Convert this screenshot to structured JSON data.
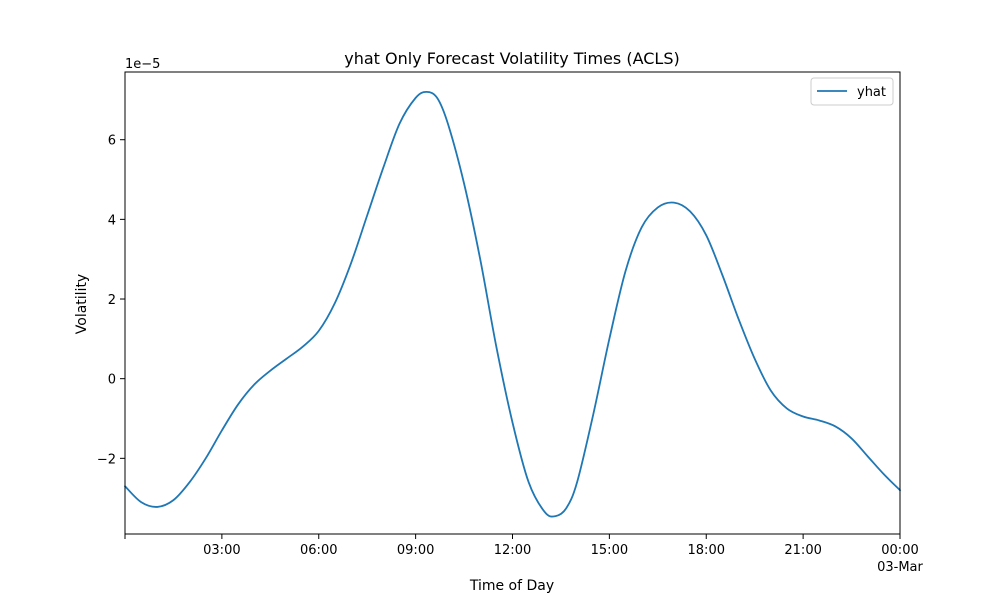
{
  "chart_data": {
    "type": "line",
    "title": "yhat Only Forecast Volatility Times (ACLS)",
    "xlabel": "Time of Day",
    "ylabel": "Volatility",
    "y_offset_label": "1e−5",
    "y_scale_factor": 1e-05,
    "xlim": [
      "00:00",
      "24:00"
    ],
    "ylim": [
      -3.9,
      7.7
    ],
    "x_ticks": [
      {
        "value": 0,
        "label": ""
      },
      {
        "value": 3,
        "label": "03:00"
      },
      {
        "value": 6,
        "label": "06:00"
      },
      {
        "value": 9,
        "label": "09:00"
      },
      {
        "value": 12,
        "label": "12:00"
      },
      {
        "value": 15,
        "label": "15:00"
      },
      {
        "value": 18,
        "label": "18:00"
      },
      {
        "value": 21,
        "label": "21:00"
      },
      {
        "value": 24,
        "label": "00:00",
        "sublabel": "03-Mar"
      }
    ],
    "y_ticks": [
      {
        "value": -2,
        "label": "−2"
      },
      {
        "value": 0,
        "label": "0"
      },
      {
        "value": 2,
        "label": "2"
      },
      {
        "value": 4,
        "label": "4"
      },
      {
        "value": 6,
        "label": "6"
      }
    ],
    "grid": false,
    "legend": {
      "position": "top-right",
      "entries": [
        "yhat"
      ]
    },
    "series": [
      {
        "name": "yhat",
        "color": "#1f77b4",
        "x": [
          "00:00",
          "00:30",
          "01:00",
          "01:30",
          "02:00",
          "02:30",
          "03:00",
          "03:30",
          "04:00",
          "04:30",
          "05:00",
          "05:30",
          "06:00",
          "06:30",
          "07:00",
          "07:30",
          "08:00",
          "08:30",
          "09:00",
          "09:20",
          "09:40",
          "10:00",
          "10:30",
          "11:00",
          "11:30",
          "12:00",
          "12:30",
          "13:00",
          "13:20",
          "13:40",
          "14:00",
          "14:30",
          "15:00",
          "15:30",
          "16:00",
          "16:30",
          "17:00",
          "17:30",
          "18:00",
          "18:30",
          "19:00",
          "19:30",
          "20:00",
          "20:30",
          "21:00",
          "21:30",
          "22:00",
          "22:30",
          "23:00",
          "23:30",
          "24:00"
        ],
        "values": [
          -2.7,
          -3.1,
          -3.22,
          -3.05,
          -2.6,
          -2.0,
          -1.3,
          -0.65,
          -0.15,
          0.2,
          0.5,
          0.8,
          1.2,
          1.9,
          2.9,
          4.1,
          5.3,
          6.4,
          7.05,
          7.2,
          7.05,
          6.4,
          4.9,
          3.0,
          0.8,
          -1.1,
          -2.6,
          -3.35,
          -3.45,
          -3.25,
          -2.6,
          -0.9,
          1.0,
          2.7,
          3.8,
          4.3,
          4.42,
          4.2,
          3.6,
          2.6,
          1.5,
          0.5,
          -0.3,
          -0.75,
          -0.95,
          -1.05,
          -1.2,
          -1.5,
          -1.95,
          -2.4,
          -2.8
        ]
      }
    ]
  }
}
